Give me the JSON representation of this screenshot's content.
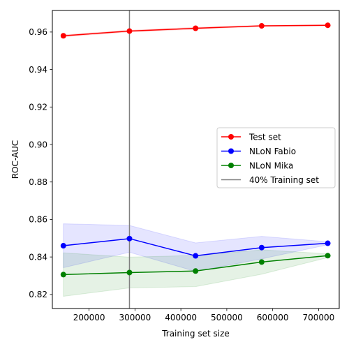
{
  "chart_data": {
    "type": "line",
    "xlabel": "Training set size",
    "ylabel": "ROC-AUC",
    "xlim": [
      120000,
      745000
    ],
    "ylim": [
      0.8125,
      0.9715
    ],
    "xticks": [
      200000,
      300000,
      400000,
      500000,
      600000,
      700000
    ],
    "xtick_labels": [
      "200000",
      "300000",
      "400000",
      "500000",
      "600000",
      "700000"
    ],
    "yticks": [
      0.82,
      0.84,
      0.86,
      0.88,
      0.9,
      0.92,
      0.94,
      0.96
    ],
    "ytick_labels": [
      "0.82",
      "0.84",
      "0.86",
      "0.88",
      "0.90",
      "0.92",
      "0.94",
      "0.96"
    ],
    "grid": false,
    "legend_position": "center-right",
    "x": [
      144000,
      288000,
      432000,
      576000,
      720000
    ],
    "series": [
      {
        "name": "Test set",
        "color": "#ff0000",
        "band_color": "#ff0000",
        "values": [
          0.958,
          0.9605,
          0.962,
          0.9633,
          0.9636
        ],
        "lower": [
          0.9575,
          0.96,
          0.9615,
          0.963,
          0.9633
        ],
        "upper": [
          0.9585,
          0.961,
          0.9625,
          0.9636,
          0.9639
        ]
      },
      {
        "name": "NLoN Fabio",
        "color": "#0000ff",
        "band_color": "#0000ff",
        "values": [
          0.846,
          0.8498,
          0.8406,
          0.845,
          0.8473
        ],
        "lower": [
          0.8343,
          0.8425,
          0.8323,
          0.839,
          0.8465
        ],
        "upper": [
          0.8577,
          0.8568,
          0.8475,
          0.851,
          0.8481
        ]
      },
      {
        "name": "NLoN Mika",
        "color": "#008000",
        "band_color": "#008000",
        "values": [
          0.8306,
          0.8317,
          0.8325,
          0.8373,
          0.8407
        ],
        "lower": [
          0.819,
          0.8235,
          0.8242,
          0.8308,
          0.8397
        ],
        "upper": [
          0.8422,
          0.8399,
          0.8408,
          0.8438,
          0.8417
        ]
      }
    ],
    "vline": {
      "name": "40% Training set",
      "x": 288000,
      "color": "#808080"
    }
  }
}
